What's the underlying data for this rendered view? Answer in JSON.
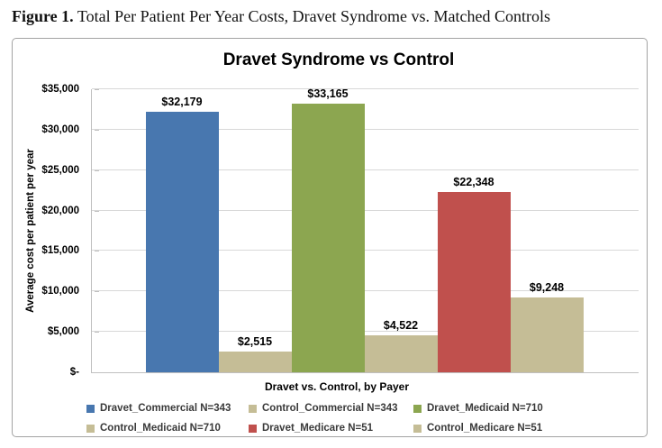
{
  "figure_title": {
    "prefix": "Figure 1.",
    "rest": " Total Per Patient Per Year Costs, Dravet Syndrome vs. Matched Controls"
  },
  "chart_data": {
    "type": "bar",
    "title": "Dravet Syndrome vs Control",
    "xlabel": "Dravet vs. Control, by Payer",
    "ylabel": "Average cost per patient per year",
    "ylim": [
      0,
      35000
    ],
    "ytick_step": 5000,
    "ytick_labels": [
      "$-",
      "$5,000",
      "$10,000",
      "$15,000",
      "$20,000",
      "$25,000",
      "$30,000",
      "$35,000"
    ],
    "grid": true,
    "legend_position": "bottom",
    "series": [
      {
        "name": "Dravet_Commercial N=343",
        "value": 32179,
        "label": "$32,179",
        "color": "#4877AF"
      },
      {
        "name": "Control_Commercial N=343",
        "value": 2515,
        "label": "$2,515",
        "color": "#C5BD96"
      },
      {
        "name": "Dravet_Medicaid N=710",
        "value": 33165,
        "label": "$33,165",
        "color": "#8CA650"
      },
      {
        "name": "Control_Medicaid N=710",
        "value": 4522,
        "label": "$4,522",
        "color": "#C5BD96"
      },
      {
        "name": "Dravet_Medicare N=51",
        "value": 22348,
        "label": "$22,348",
        "color": "#C0504D"
      },
      {
        "name": "Control_Medicare N=51",
        "value": 9248,
        "label": "$9,248",
        "color": "#C5BD96"
      }
    ]
  }
}
